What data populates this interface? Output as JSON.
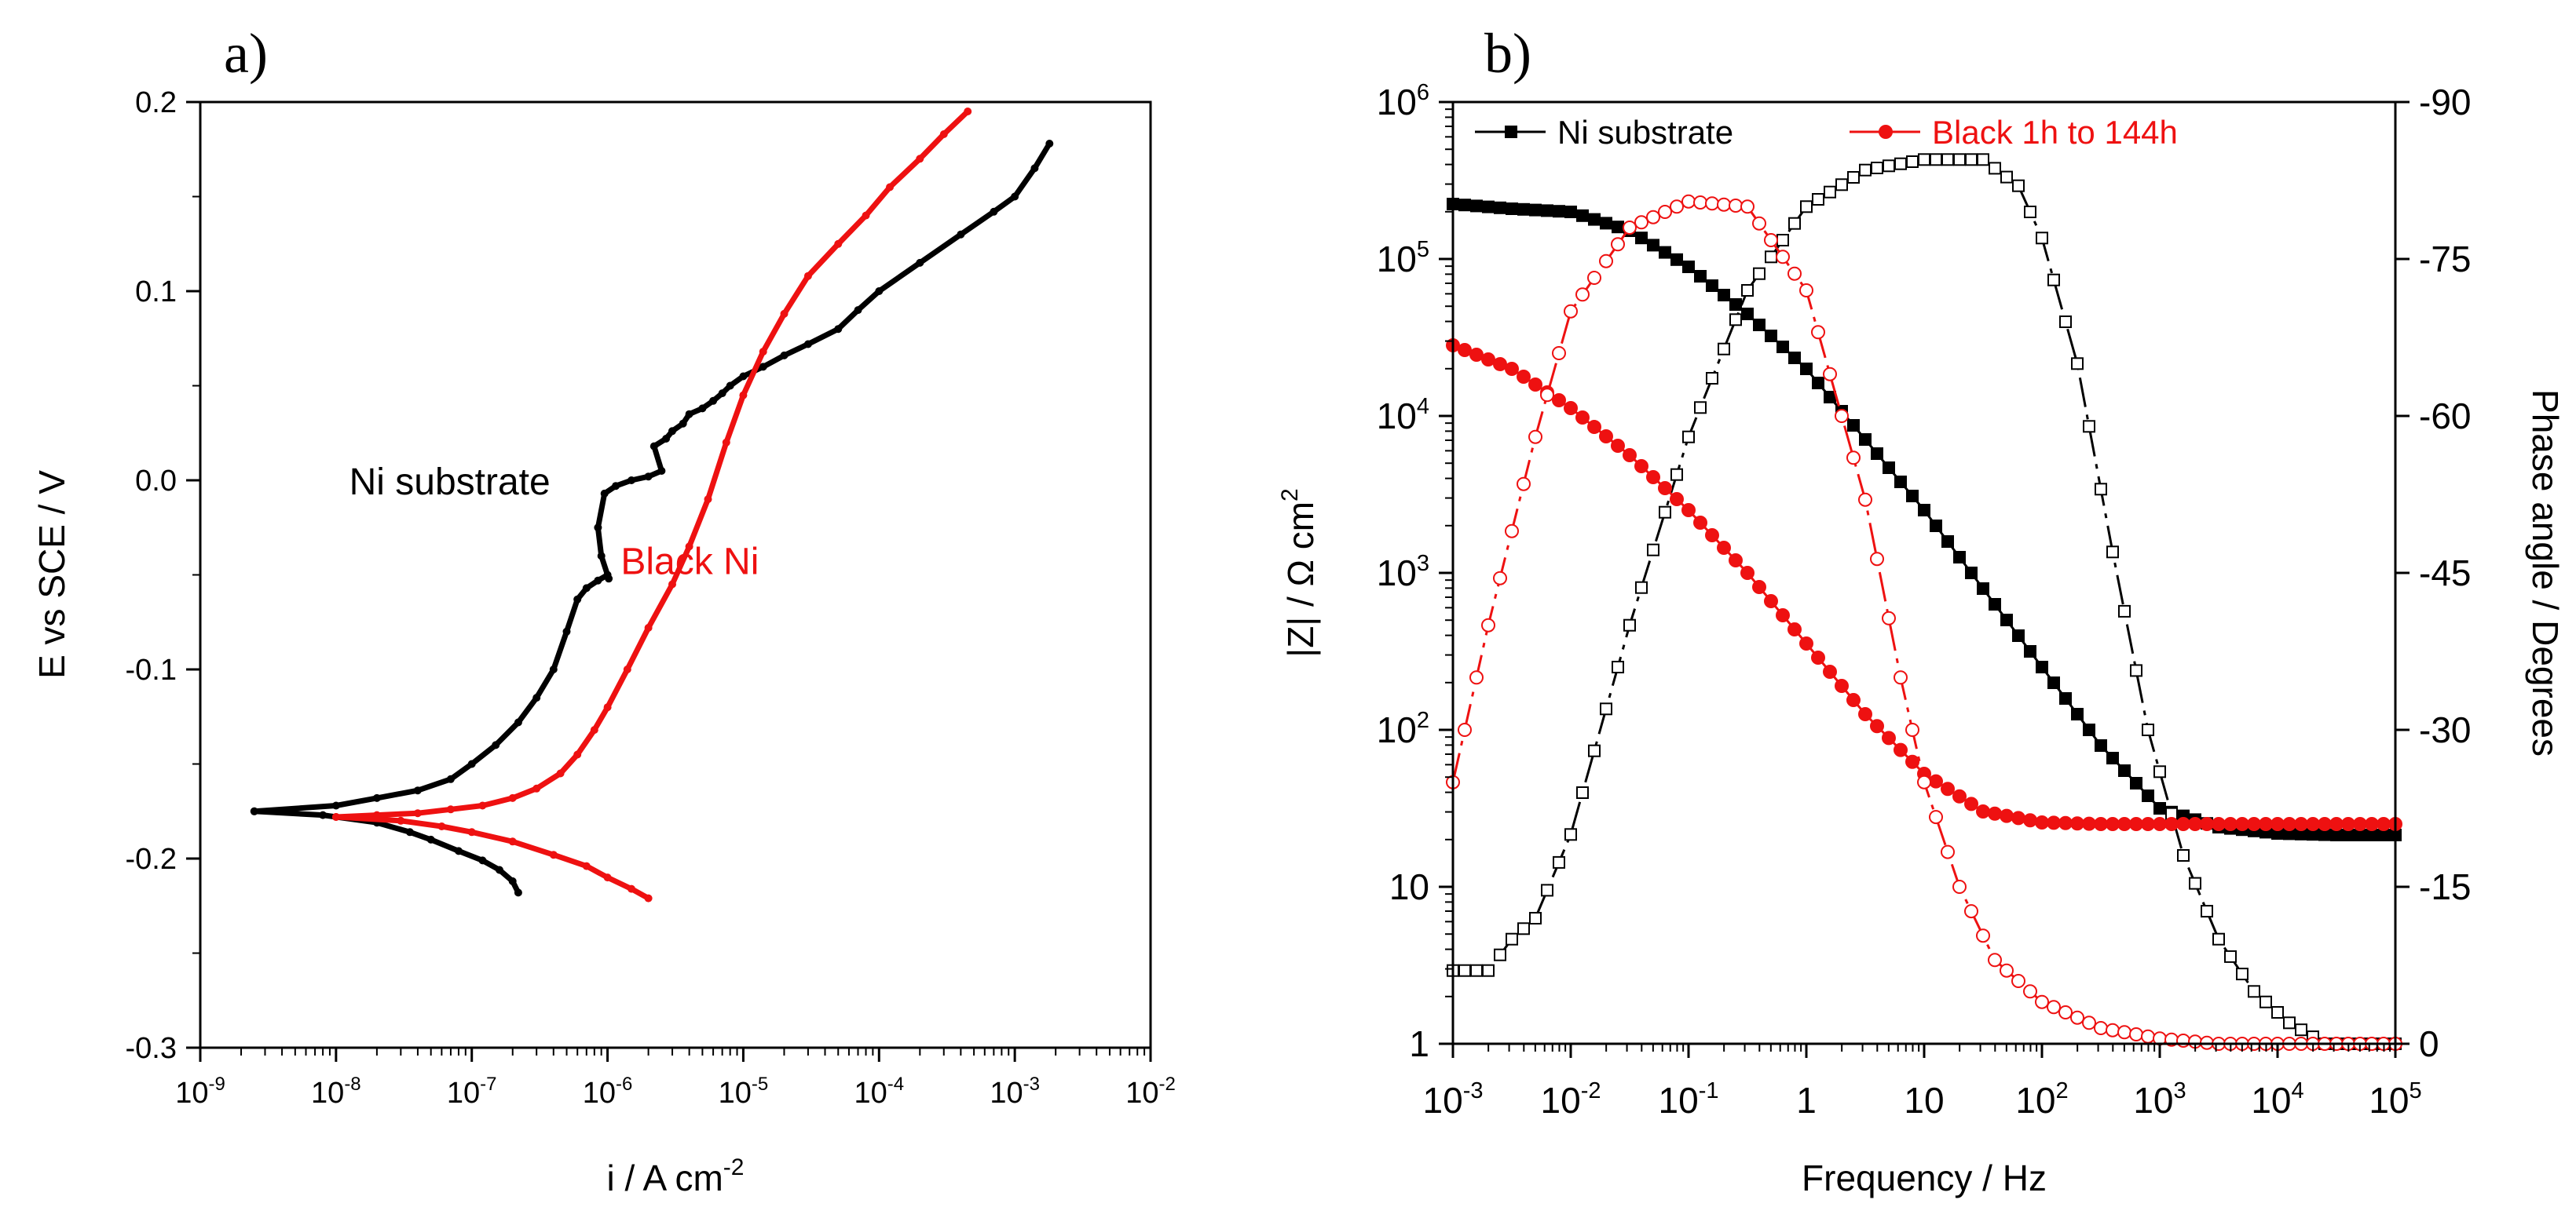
{
  "chart_data": [
    {
      "type": "line",
      "panel_label": "a)",
      "title": "",
      "xlabel": "i / A cm",
      "xlabel_sup": "-2",
      "ylabel": "E vs SCE / V",
      "xscale": "log",
      "xlim": [
        1e-09,
        0.01
      ],
      "ylim": [
        -0.3,
        0.2
      ],
      "x_ticks": [
        {
          "base": "10",
          "exp": "-9"
        },
        {
          "base": "10",
          "exp": "-8"
        },
        {
          "base": "10",
          "exp": "-7"
        },
        {
          "base": "10",
          "exp": "-6"
        },
        {
          "base": "10",
          "exp": "-5"
        },
        {
          "base": "10",
          "exp": "-4"
        },
        {
          "base": "10",
          "exp": "-3"
        },
        {
          "base": "10",
          "exp": "-2"
        }
      ],
      "y_ticks": [
        "0.2",
        "0.1",
        "0.0",
        "-0.1",
        "-0.2",
        "-0.3"
      ],
      "annotations": [
        {
          "text": "Ni substrate",
          "color": "#000000",
          "x": 1.25e-08,
          "y": -0.0075
        },
        {
          "text": "Black Ni",
          "color": "#ee1111",
          "x": 1.25e-06,
          "y": -0.0495
        }
      ],
      "series": [
        {
          "name": "Ni substrate",
          "color": "#000000",
          "anodic": [
            [
              2.5e-09,
              -0.175
            ],
            [
              1e-08,
              -0.172
            ],
            [
              2e-08,
              -0.168
            ],
            [
              4e-08,
              -0.164
            ],
            [
              7e-08,
              -0.158
            ],
            [
              1e-07,
              -0.15
            ],
            [
              1.5e-07,
              -0.14
            ],
            [
              2.2e-07,
              -0.128
            ],
            [
              3e-07,
              -0.115
            ],
            [
              4e-07,
              -0.1
            ],
            [
              5e-07,
              -0.08
            ],
            [
              6e-07,
              -0.063
            ],
            [
              7e-07,
              -0.057
            ],
            [
              8.5e-07,
              -0.053
            ],
            [
              1e-06,
              -0.05
            ],
            [
              1.02e-06,
              -0.052
            ],
            [
              9e-07,
              -0.04
            ],
            [
              8.5e-07,
              -0.025
            ],
            [
              9.5e-07,
              -0.007
            ],
            [
              1.15e-06,
              -0.003
            ],
            [
              1.5e-06,
              0.0
            ],
            [
              2e-06,
              0.002
            ],
            [
              2.5e-06,
              0.005
            ],
            [
              2.2e-06,
              0.018
            ],
            [
              2.7e-06,
              0.022
            ],
            [
              3e-06,
              0.026
            ],
            [
              3.6e-06,
              0.03
            ],
            [
              4e-06,
              0.035
            ],
            [
              5e-06,
              0.038
            ],
            [
              6e-06,
              0.042
            ],
            [
              7e-06,
              0.046
            ],
            [
              8e-06,
              0.05
            ],
            [
              1e-05,
              0.055
            ],
            [
              1.4e-05,
              0.06
            ],
            [
              2e-05,
              0.066
            ],
            [
              3e-05,
              0.072
            ],
            [
              5e-05,
              0.08
            ],
            [
              7e-05,
              0.09
            ],
            [
              0.0001,
              0.1
            ],
            [
              0.0002,
              0.115
            ],
            [
              0.0004,
              0.13
            ],
            [
              0.0007,
              0.142
            ],
            [
              0.001,
              0.15
            ],
            [
              0.0014,
              0.165
            ],
            [
              0.0018,
              0.178
            ]
          ],
          "cathodic": [
            [
              2.5e-09,
              -0.175
            ],
            [
              8e-09,
              -0.177
            ],
            [
              2e-08,
              -0.181
            ],
            [
              3.5e-08,
              -0.186
            ],
            [
              5e-08,
              -0.19
            ],
            [
              8e-08,
              -0.196
            ],
            [
              1.2e-07,
              -0.201
            ],
            [
              1.6e-07,
              -0.206
            ],
            [
              2e-07,
              -0.212
            ],
            [
              2.2e-07,
              -0.218
            ]
          ]
        },
        {
          "name": "Black Ni",
          "color": "#ee1111",
          "anodic": [
            [
              1e-08,
              -0.178
            ],
            [
              2e-08,
              -0.177
            ],
            [
              4e-08,
              -0.176
            ],
            [
              7e-08,
              -0.174
            ],
            [
              1.2e-07,
              -0.172
            ],
            [
              2e-07,
              -0.168
            ],
            [
              3e-07,
              -0.163
            ],
            [
              4.5e-07,
              -0.155
            ],
            [
              6e-07,
              -0.145
            ],
            [
              8e-07,
              -0.132
            ],
            [
              1e-06,
              -0.12
            ],
            [
              1.4e-06,
              -0.1
            ],
            [
              2e-06,
              -0.078
            ],
            [
              3e-06,
              -0.055
            ],
            [
              4e-06,
              -0.035
            ],
            [
              5.5e-06,
              -0.01
            ],
            [
              7.5e-06,
              0.02
            ],
            [
              1e-05,
              0.045
            ],
            [
              1.4e-05,
              0.068
            ],
            [
              2e-05,
              0.088
            ],
            [
              3e-05,
              0.108
            ],
            [
              5e-05,
              0.125
            ],
            [
              8e-05,
              0.14
            ],
            [
              0.00012,
              0.155
            ],
            [
              0.0002,
              0.17
            ],
            [
              0.0003,
              0.183
            ],
            [
              0.00045,
              0.195
            ]
          ],
          "cathodic": [
            [
              1e-08,
              -0.178
            ],
            [
              3e-08,
              -0.18
            ],
            [
              6e-08,
              -0.183
            ],
            [
              1e-07,
              -0.186
            ],
            [
              2e-07,
              -0.191
            ],
            [
              4e-07,
              -0.198
            ],
            [
              7e-07,
              -0.204
            ],
            [
              1e-06,
              -0.21
            ],
            [
              1.5e-06,
              -0.216
            ],
            [
              2e-06,
              -0.221
            ]
          ]
        }
      ]
    },
    {
      "type": "line",
      "panel_label": "b)",
      "title": "",
      "xlabel": "Frequency / Hz",
      "ylabel_left": "|Z| / Ω cm",
      "ylabel_left_sup": "2",
      "ylabel_right": "Phase angle / Degrees",
      "xscale": "log",
      "yscale_left": "log",
      "xlim": [
        0.001,
        100000.0
      ],
      "ylim_left": [
        1,
        1000000.0
      ],
      "ylim_right": [
        0,
        -90
      ],
      "x_ticks": [
        {
          "base": "10",
          "exp": "-3"
        },
        {
          "base": "10",
          "exp": "-2"
        },
        {
          "base": "10",
          "exp": "-1"
        },
        {
          "base": "1",
          "exp": ""
        },
        {
          "base": "10",
          "exp": ""
        },
        {
          "base": "10",
          "exp": "2"
        },
        {
          "base": "10",
          "exp": "3"
        },
        {
          "base": "10",
          "exp": "4"
        },
        {
          "base": "10",
          "exp": "5"
        }
      ],
      "y_ticks_left": [
        {
          "base": "1",
          "exp": ""
        },
        {
          "base": "10",
          "exp": ""
        },
        {
          "base": "10",
          "exp": "2"
        },
        {
          "base": "10",
          "exp": "3"
        },
        {
          "base": "10",
          "exp": "4"
        },
        {
          "base": "10",
          "exp": "5"
        },
        {
          "base": "10",
          "exp": "6"
        }
      ],
      "y_ticks_right": [
        "-90",
        "-75",
        "-60",
        "-45",
        "-30",
        "-15",
        "0"
      ],
      "legend": [
        {
          "label": "Ni substrate",
          "color": "#000000",
          "marker": "square"
        },
        {
          "label": "Black 1h to 144h",
          "color": "#ee1111",
          "marker": "circle"
        }
      ],
      "legend_position": "top-left",
      "series": [
        {
          "name": "Ni substrate |Z|",
          "axis": "left",
          "color": "#000000",
          "marker": "square",
          "filled": true,
          "points": [
            [
              -3,
              5.35
            ],
            [
              -2.5,
              5.32
            ],
            [
              -2,
              5.3
            ],
            [
              -1.5,
              5.18
            ],
            [
              -1,
              4.95
            ],
            [
              -0.5,
              4.65
            ],
            [
              0,
              4.3
            ],
            [
              0.5,
              3.85
            ],
            [
              1,
              3.4
            ],
            [
              1.5,
              2.9
            ],
            [
              2,
              2.4
            ],
            [
              2.5,
              1.9
            ],
            [
              3,
              1.5
            ],
            [
              3.5,
              1.38
            ],
            [
              4,
              1.34
            ],
            [
              4.5,
              1.33
            ],
            [
              5,
              1.33
            ]
          ]
        },
        {
          "name": "Ni substrate phase",
          "axis": "right",
          "color": "#000000",
          "marker": "square",
          "filled": false,
          "points": [
            [
              -3,
              -7
            ],
            [
              -2.7,
              -7
            ],
            [
              -2.5,
              -10
            ],
            [
              -2.3,
              -12
            ],
            [
              -2,
              -20
            ],
            [
              -1.5,
              -40
            ],
            [
              -1,
              -58
            ],
            [
              -0.5,
              -72
            ],
            [
              0,
              -80
            ],
            [
              0.5,
              -83.5
            ],
            [
              1,
              -84.5
            ],
            [
              1.5,
              -84.5
            ],
            [
              1.8,
              -82
            ],
            [
              2,
              -77
            ],
            [
              2.3,
              -65
            ],
            [
              2.6,
              -47
            ],
            [
              2.9,
              -30
            ],
            [
              3.2,
              -18
            ],
            [
              3.5,
              -10
            ],
            [
              3.8,
              -5
            ],
            [
              4.1,
              -2
            ],
            [
              4.4,
              0
            ],
            [
              4.7,
              0
            ],
            [
              5,
              0
            ]
          ]
        },
        {
          "name": "Black 1h to 144h |Z|",
          "axis": "left",
          "color": "#ee1111",
          "marker": "circle",
          "filled": true,
          "points": [
            [
              -3,
              4.45
            ],
            [
              -2.5,
              4.3
            ],
            [
              -2,
              4.05
            ],
            [
              -1.5,
              3.75
            ],
            [
              -1,
              3.4
            ],
            [
              -0.5,
              3.0
            ],
            [
              0,
              2.55
            ],
            [
              0.5,
              2.1
            ],
            [
              1,
              1.72
            ],
            [
              1.5,
              1.48
            ],
            [
              2,
              1.41
            ],
            [
              2.5,
              1.4
            ],
            [
              3,
              1.4
            ],
            [
              3.5,
              1.4
            ],
            [
              4,
              1.4
            ],
            [
              4.5,
              1.4
            ],
            [
              5,
              1.4
            ]
          ]
        },
        {
          "name": "Black 1h to 144h phase",
          "axis": "right",
          "color": "#ee1111",
          "marker": "circle",
          "filled": false,
          "points": [
            [
              -3,
              -25
            ],
            [
              -2.7,
              -40
            ],
            [
              -2.3,
              -58
            ],
            [
              -2,
              -70
            ],
            [
              -1.5,
              -78
            ],
            [
              -1,
              -80.5
            ],
            [
              -0.5,
              -80
            ],
            [
              0,
              -72
            ],
            [
              0.5,
              -52
            ],
            [
              0.8,
              -35
            ],
            [
              1,
              -25
            ],
            [
              1.3,
              -15
            ],
            [
              1.6,
              -8
            ],
            [
              2,
              -4
            ],
            [
              2.5,
              -1.5
            ],
            [
              3,
              -0.5
            ],
            [
              3.5,
              0
            ],
            [
              4,
              0
            ],
            [
              5,
              0
            ]
          ]
        }
      ]
    }
  ]
}
